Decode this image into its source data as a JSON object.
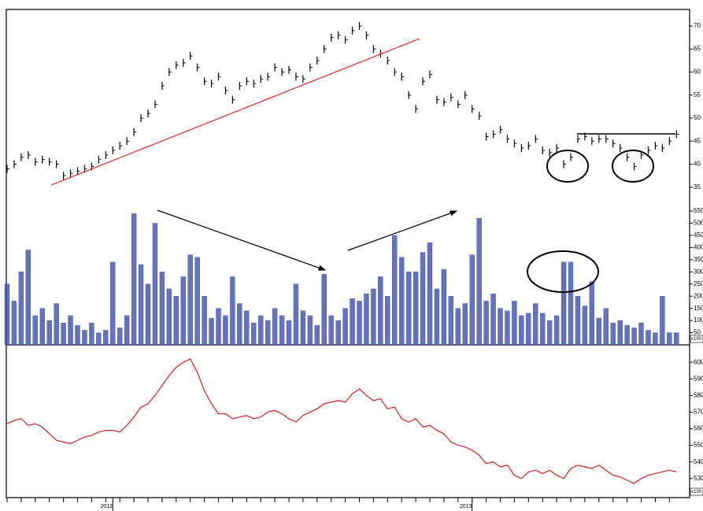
{
  "chart_data": [
    {
      "type": "price-bars",
      "color": "#000000",
      "ylim": [
        31.2,
        73.6
      ],
      "yticks": [
        35,
        40,
        45,
        50,
        55,
        60,
        65,
        70
      ],
      "values": [
        39,
        40,
        41.5,
        42,
        40.5,
        41,
        40.5,
        40,
        37.5,
        38,
        38.5,
        39,
        39.5,
        41,
        42,
        43,
        44,
        45,
        47,
        50,
        51,
        53,
        57,
        60,
        61.5,
        62,
        63.5,
        61,
        58,
        57.5,
        59,
        56,
        54,
        57,
        58,
        57.5,
        58.5,
        59,
        61,
        60,
        60.5,
        59,
        58.5,
        61,
        62.5,
        65,
        67.5,
        68,
        67,
        69,
        70,
        68,
        65,
        64,
        62.5,
        60,
        59,
        55,
        52,
        58,
        59.5,
        54,
        53.5,
        54.5,
        53,
        55,
        52,
        50.5,
        46,
        46.5,
        47.5,
        45.5,
        44.5,
        43.5,
        44,
        45.5,
        43,
        42.5,
        43.5,
        40,
        41.5,
        45.5,
        46,
        45,
        45.5,
        45.5,
        44.5,
        43.5,
        41.5,
        39.5,
        42,
        43,
        44,
        43.5,
        45,
        46.5
      ]
    },
    {
      "type": "bar",
      "color": "#3f51a8",
      "unit_label": "x100",
      "ylim": [
        0,
        576
      ],
      "yticks": [
        50,
        100,
        150,
        200,
        250,
        300,
        350,
        400,
        450,
        500,
        550
      ],
      "values": [
        250,
        180,
        300,
        390,
        120,
        150,
        100,
        170,
        90,
        120,
        80,
        60,
        90,
        50,
        60,
        340,
        70,
        120,
        540,
        330,
        250,
        500,
        300,
        230,
        200,
        280,
        370,
        360,
        200,
        110,
        150,
        120,
        280,
        170,
        140,
        90,
        120,
        100,
        150,
        120,
        100,
        250,
        140,
        120,
        80,
        290,
        120,
        100,
        150,
        190,
        180,
        210,
        230,
        280,
        200,
        450,
        360,
        300,
        300,
        380,
        420,
        230,
        310,
        200,
        150,
        170,
        370,
        520,
        180,
        210,
        150,
        140,
        180,
        120,
        130,
        170,
        130,
        100,
        120,
        340,
        340,
        200,
        160,
        260,
        110,
        150,
        90,
        100,
        80,
        70,
        90,
        60,
        50,
        200,
        50,
        50
      ]
    },
    {
      "type": "line",
      "color": "#d42020",
      "unit_label": "x100",
      "ylim": [
        518.5,
        610.5
      ],
      "yticks": [
        530,
        540,
        550,
        560,
        570,
        580,
        590,
        600
      ],
      "categories": [
        null,
        null,
        null,
        null,
        null,
        null,
        null,
        null,
        null,
        null,
        null,
        null,
        null,
        null,
        null,
        "2012",
        null,
        null,
        null,
        null,
        null,
        null,
        null,
        null,
        null,
        null,
        null,
        null,
        null,
        null,
        null,
        null,
        null,
        null,
        null,
        null,
        null,
        null,
        null,
        null,
        null,
        null,
        null,
        null,
        null,
        null,
        null,
        null,
        null,
        null,
        null,
        null,
        null,
        null,
        null,
        null,
        null,
        null,
        null,
        null,
        null,
        null,
        null,
        null,
        null,
        null,
        "2013",
        null,
        null,
        null,
        null,
        null,
        null,
        null,
        null,
        null,
        null,
        null,
        null,
        null,
        null,
        null,
        null,
        null,
        null,
        null,
        null,
        null,
        null,
        null,
        null,
        null,
        null,
        null,
        null,
        null
      ],
      "values": [
        563,
        565,
        566,
        562,
        563,
        561,
        557,
        553,
        552,
        551,
        553,
        555,
        556,
        558,
        559,
        559,
        558,
        562,
        567,
        573,
        575,
        580,
        586,
        592,
        597,
        600,
        602,
        594,
        583,
        575,
        569,
        569,
        566,
        567,
        568,
        566,
        567,
        570,
        571,
        569,
        566,
        564,
        568,
        570,
        572,
        575,
        576,
        577,
        576,
        581,
        584,
        580,
        577,
        578,
        572,
        573,
        566,
        564,
        566,
        561,
        562,
        559,
        557,
        552,
        550,
        549,
        547,
        544,
        539,
        540,
        537,
        538,
        532,
        530,
        534,
        535,
        533,
        535,
        532,
        530,
        536,
        538,
        537,
        536,
        538,
        535,
        532,
        531,
        529,
        527,
        530,
        532,
        533,
        534,
        535,
        534
      ]
    }
  ]
}
